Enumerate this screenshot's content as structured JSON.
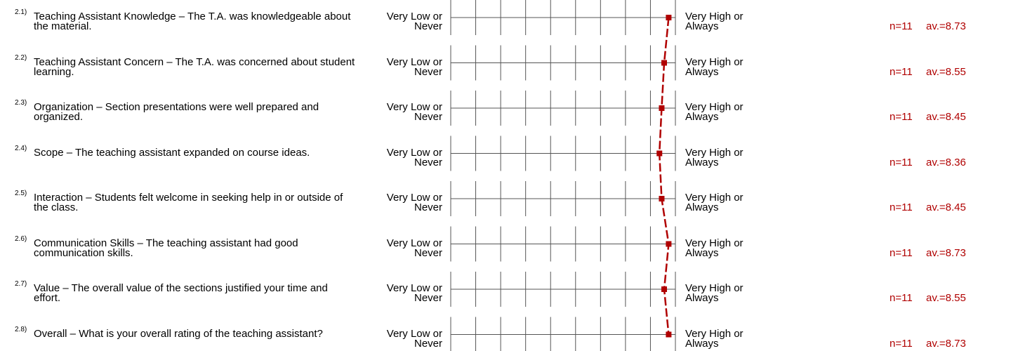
{
  "chart_data": {
    "type": "line",
    "title": "",
    "xlabel": "",
    "ylabel": "",
    "scale_min_label": "Very Low or Never",
    "scale_max_label": "Very High or Always",
    "scale_min_lines": [
      "Very Low or",
      "Never"
    ],
    "scale_max_lines": [
      "Very High or",
      "Always"
    ],
    "xlim": [
      0,
      9
    ],
    "line_color": "#b00000",
    "grid": true,
    "items": [
      {
        "number": "2.1)",
        "question": "Teaching Assistant Knowledge – The T.A. was knowledgeable about the material.",
        "n": "n=11",
        "av": "av.=8.73",
        "value": 8.73
      },
      {
        "number": "2.2)",
        "question": "Teaching Assistant Concern – The T.A. was concerned about student learning.",
        "n": "n=11",
        "av": "av.=8.55",
        "value": 8.55
      },
      {
        "number": "2.3)",
        "question": "Organization – Section presentations were well prepared and organized.",
        "n": "n=11",
        "av": "av.=8.45",
        "value": 8.45
      },
      {
        "number": "2.4)",
        "question": "Scope – The teaching assistant expanded on course ideas.",
        "n": "n=11",
        "av": "av.=8.36",
        "value": 8.36
      },
      {
        "number": "2.5)",
        "question": "Interaction – Students felt welcome in seeking help in or outside of the class.",
        "n": "n=11",
        "av": "av.=8.45",
        "value": 8.45
      },
      {
        "number": "2.6)",
        "question": "Communication Skills – The teaching assistant had good communication skills.",
        "n": "n=11",
        "av": "av.=8.73",
        "value": 8.73
      },
      {
        "number": "2.7)",
        "question": "Value – The overall value of the sections justified your time and effort.",
        "n": "n=11",
        "av": "av.=8.55",
        "value": 8.55
      },
      {
        "number": "2.8)",
        "question": "Overall – What is your overall rating of the teaching assistant?",
        "n": "n=11",
        "av": "av.=8.73",
        "value": 8.73
      }
    ]
  }
}
